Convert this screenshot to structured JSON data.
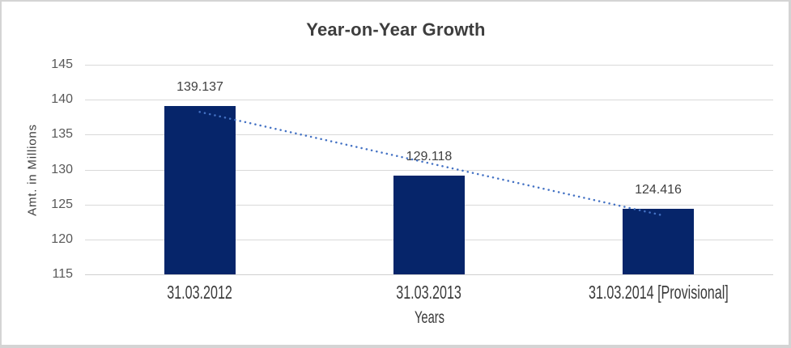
{
  "chart_data": {
    "type": "bar",
    "title": "Year-on-Year Growth",
    "categories": [
      "31.03.2012",
      "31.03.2013",
      "31.03.2014 [Provisional]"
    ],
    "values": [
      139.137,
      129.118,
      124.416
    ],
    "data_labels": [
      "139.137",
      "129.118",
      "124.416"
    ],
    "xlabel": "Years",
    "ylabel": "Amt. in Millions",
    "ylim": [
      115,
      145
    ],
    "yticks": [
      145,
      140,
      135,
      130,
      125,
      120,
      115
    ],
    "grid": true,
    "legend": "none",
    "bar_color": "#06256a",
    "trendline": {
      "type": "linear",
      "style": "dotted",
      "color": "#4472c4"
    },
    "grid_color": "#d9d9d9",
    "axis_line_color": "#cfcfcf",
    "tick_label_color": "#595959",
    "text_color": "#3d3d3d"
  }
}
